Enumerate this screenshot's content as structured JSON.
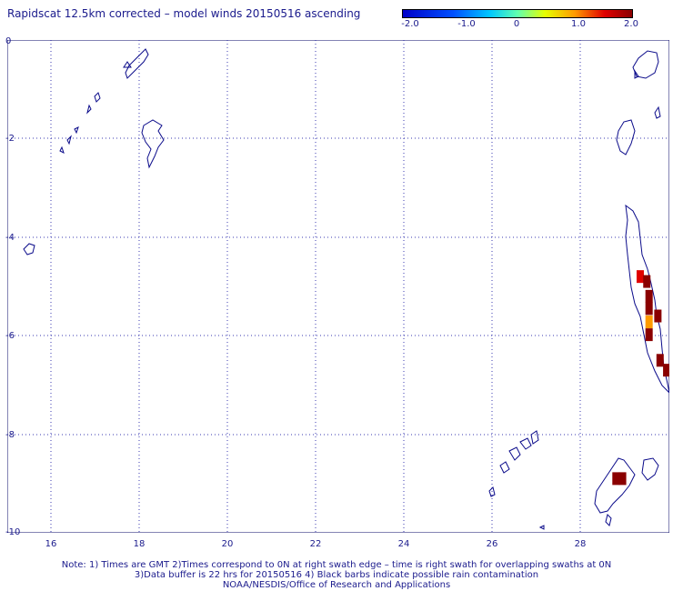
{
  "title": "Rapidscat 12.5km corrected – model winds 20150516 ascending",
  "colorbar": {
    "labels": [
      "-2.0",
      "-1.0",
      "0",
      "1.0",
      "2.0"
    ],
    "colors": [
      "#0000c8",
      "#0050ff",
      "#00c8ff",
      "#60ffb0",
      "#e6ff00",
      "#ff9a00",
      "#e00000",
      "#8a0000"
    ]
  },
  "axes": {
    "y_labels": [
      "0",
      "-2",
      "-4",
      "-6",
      "-8",
      "-10"
    ],
    "x_labels": [
      "16",
      "18",
      "20",
      "22",
      "24",
      "26",
      "28"
    ],
    "lon_range": [
      15,
      30
    ],
    "lat_range": [
      -10,
      0
    ]
  },
  "wind_cells": [
    {
      "lon": 29.35,
      "lat": -4.8,
      "value": 1.3
    },
    {
      "lon": 29.5,
      "lat": -4.9,
      "value": 2.0
    },
    {
      "lon": 29.55,
      "lat": -5.2,
      "value": 2.0
    },
    {
      "lon": 29.55,
      "lat": -5.45,
      "value": 2.0
    },
    {
      "lon": 29.55,
      "lat": -5.72,
      "value": 0.9
    },
    {
      "lon": 29.55,
      "lat": -5.98,
      "value": 2.0
    },
    {
      "lon": 29.75,
      "lat": -5.6,
      "value": 2.0
    },
    {
      "lon": 29.8,
      "lat": -6.5,
      "value": 2.0
    },
    {
      "lon": 29.95,
      "lat": -6.7,
      "value": 2.0
    },
    {
      "lon": 28.8,
      "lat": -8.9,
      "value": 2.0
    },
    {
      "lon": 28.95,
      "lat": -8.9,
      "value": 2.0
    }
  ],
  "notes": [
    "Note: 1) Times are GMT 2)Times correspond to 0N at right swath edge – time is right swath for overlapping swaths at 0N",
    "3)Data buffer is 22 hrs for 20150516 4) Black barbs indicate possible rain contamination",
    "NOAA/NESDIS/Office of Research and Applications"
  ]
}
